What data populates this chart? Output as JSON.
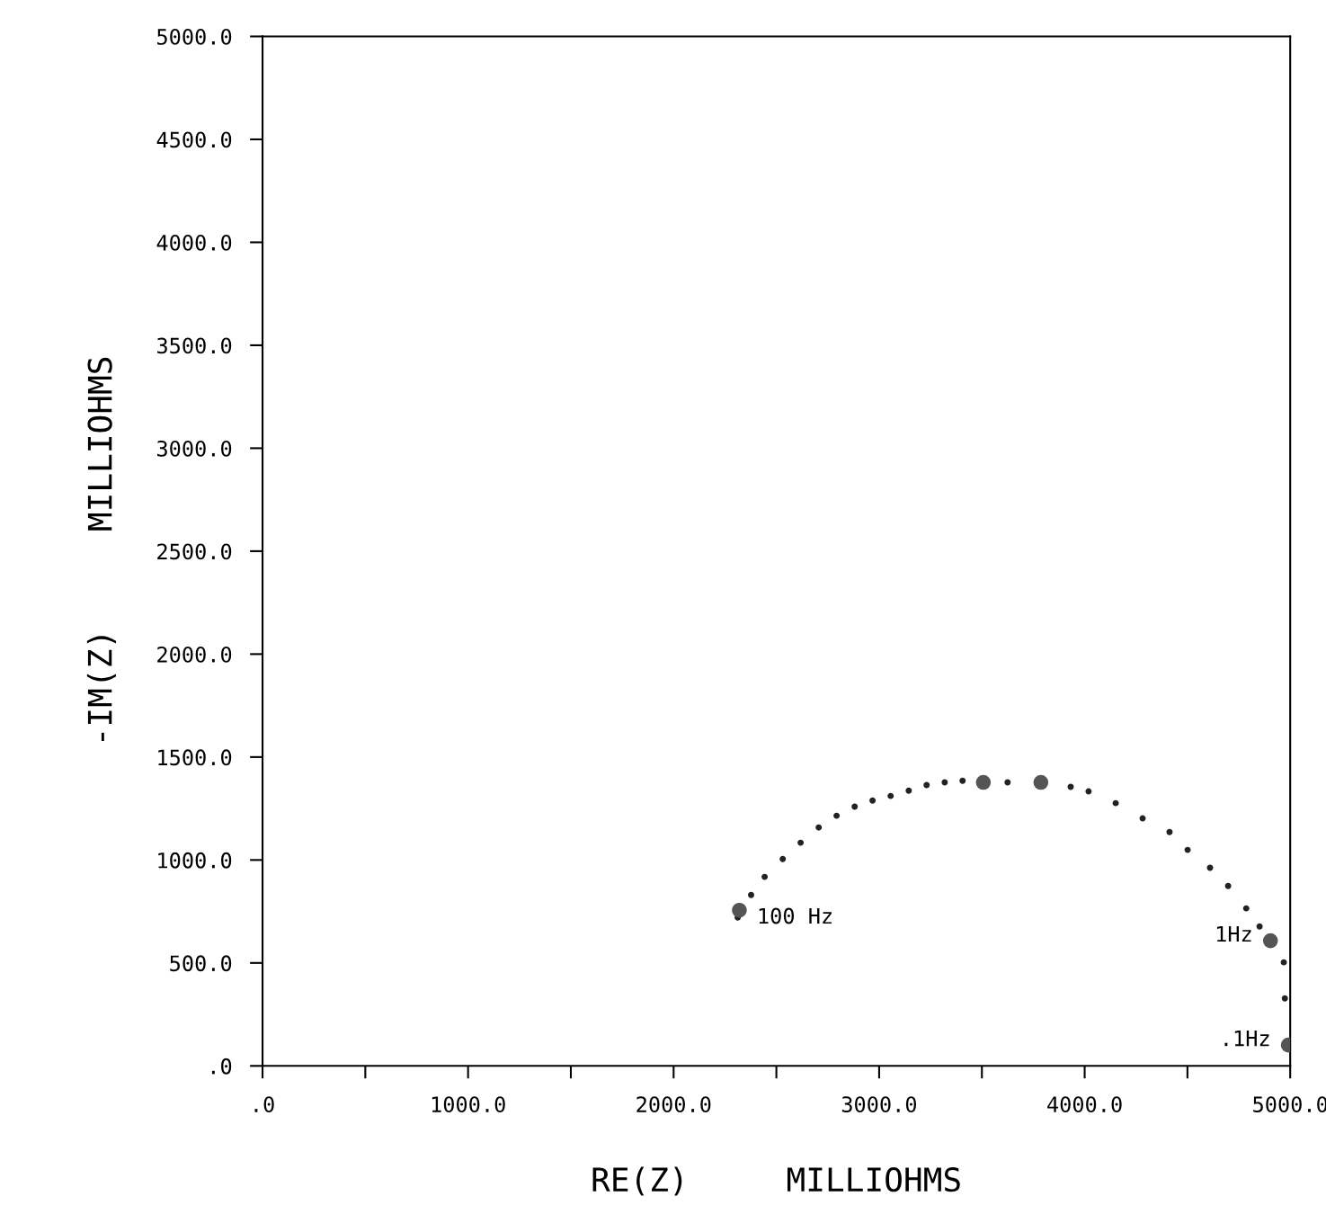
{
  "chart_data": {
    "type": "scatter",
    "xlabel": "RE(Z)     MILLIOHMS",
    "ylabel": "-IM(Z)     MILLIOHMS",
    "xlim": [
      0,
      5000
    ],
    "ylim": [
      0,
      5000
    ],
    "xticks": [
      {
        "value": 0,
        "label": ".0"
      },
      {
        "value": 500,
        "label": null
      },
      {
        "value": 1000,
        "label": "1000.0"
      },
      {
        "value": 1500,
        "label": null
      },
      {
        "value": 2000,
        "label": "2000.0"
      },
      {
        "value": 2500,
        "label": null
      },
      {
        "value": 3000,
        "label": "3000.0"
      },
      {
        "value": 3500,
        "label": null
      },
      {
        "value": 4000,
        "label": "4000.0"
      },
      {
        "value": 4500,
        "label": null
      },
      {
        "value": 5000,
        "label": "5000.0"
      }
    ],
    "yticks": [
      {
        "value": 0,
        "label": ".0"
      },
      {
        "value": 500,
        "label": "500.0"
      },
      {
        "value": 1000,
        "label": "1000.0"
      },
      {
        "value": 1500,
        "label": "1500.0"
      },
      {
        "value": 2000,
        "label": "2000.0"
      },
      {
        "value": 2500,
        "label": "2500.0"
      },
      {
        "value": 3000,
        "label": "3000.0"
      },
      {
        "value": 3500,
        "label": "3500.0"
      },
      {
        "value": 4000,
        "label": "4000.0"
      },
      {
        "value": 4500,
        "label": "4500.0"
      },
      {
        "value": 5000,
        "label": "5000.0"
      }
    ],
    "grid": false,
    "marker": "circle",
    "series": [
      {
        "color": "#222222",
        "x": [
          2312,
          2377,
          2443,
          2531,
          2618,
          2706,
          2793,
          2881,
          2968,
          3056,
          3144,
          3231,
          3319,
          3406,
          3625,
          3932,
          4019,
          4151,
          4282,
          4413,
          4501,
          4610,
          4698,
          4786,
          4851,
          4969,
          4974
        ],
        "values": [
          721,
          830,
          918,
          1005,
          1084,
          1158,
          1215,
          1259,
          1289,
          1311,
          1337,
          1364,
          1377,
          1385,
          1377,
          1355,
          1333,
          1276,
          1202,
          1136,
          1049,
          962,
          874,
          765,
          677,
          503,
          328
        ]
      },
      {
        "color": "#555555",
        "x": [
          2320,
          3507,
          3787,
          4904,
          4991
        ],
        "values": [
          756,
          1377,
          1377,
          608,
          101
        ]
      }
    ],
    "annotations": [
      {
        "text": "100 Hz",
        "x": 2320,
        "y": 756
      },
      {
        "text": "1Hz",
        "x": 4904,
        "y": 608
      },
      {
        "text": ".1Hz",
        "x": 4991,
        "y": 101
      }
    ]
  }
}
